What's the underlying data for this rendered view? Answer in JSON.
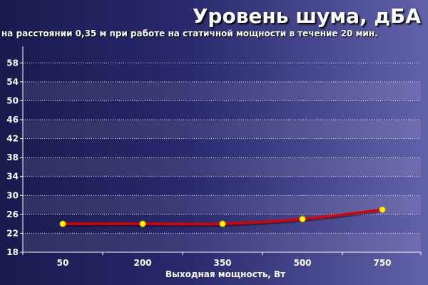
{
  "chart_data": {
    "type": "line",
    "title": "Уровень шума, дБА",
    "subtitle": "на расстоянии 0,35 м при работе на статичной мощности в течение 20 мин.",
    "xlabel": "Выходная мощность, Вт",
    "ylabel": "",
    "categories": [
      "50",
      "200",
      "350",
      "500",
      "750"
    ],
    "series": [
      {
        "values": [
          24,
          24,
          24,
          25,
          27
        ]
      }
    ],
    "ylim": [
      18,
      60
    ],
    "yticks": [
      18,
      22,
      26,
      30,
      34,
      38,
      42,
      46,
      50,
      54,
      58
    ],
    "grid": true,
    "legend": "none",
    "colors": {
      "line": "#e00000",
      "marker_fill": "#ffff00",
      "marker_stroke": "#ffa000",
      "grid": "#ffffff",
      "band": "#ffffff",
      "text": "#ffffff"
    }
  }
}
